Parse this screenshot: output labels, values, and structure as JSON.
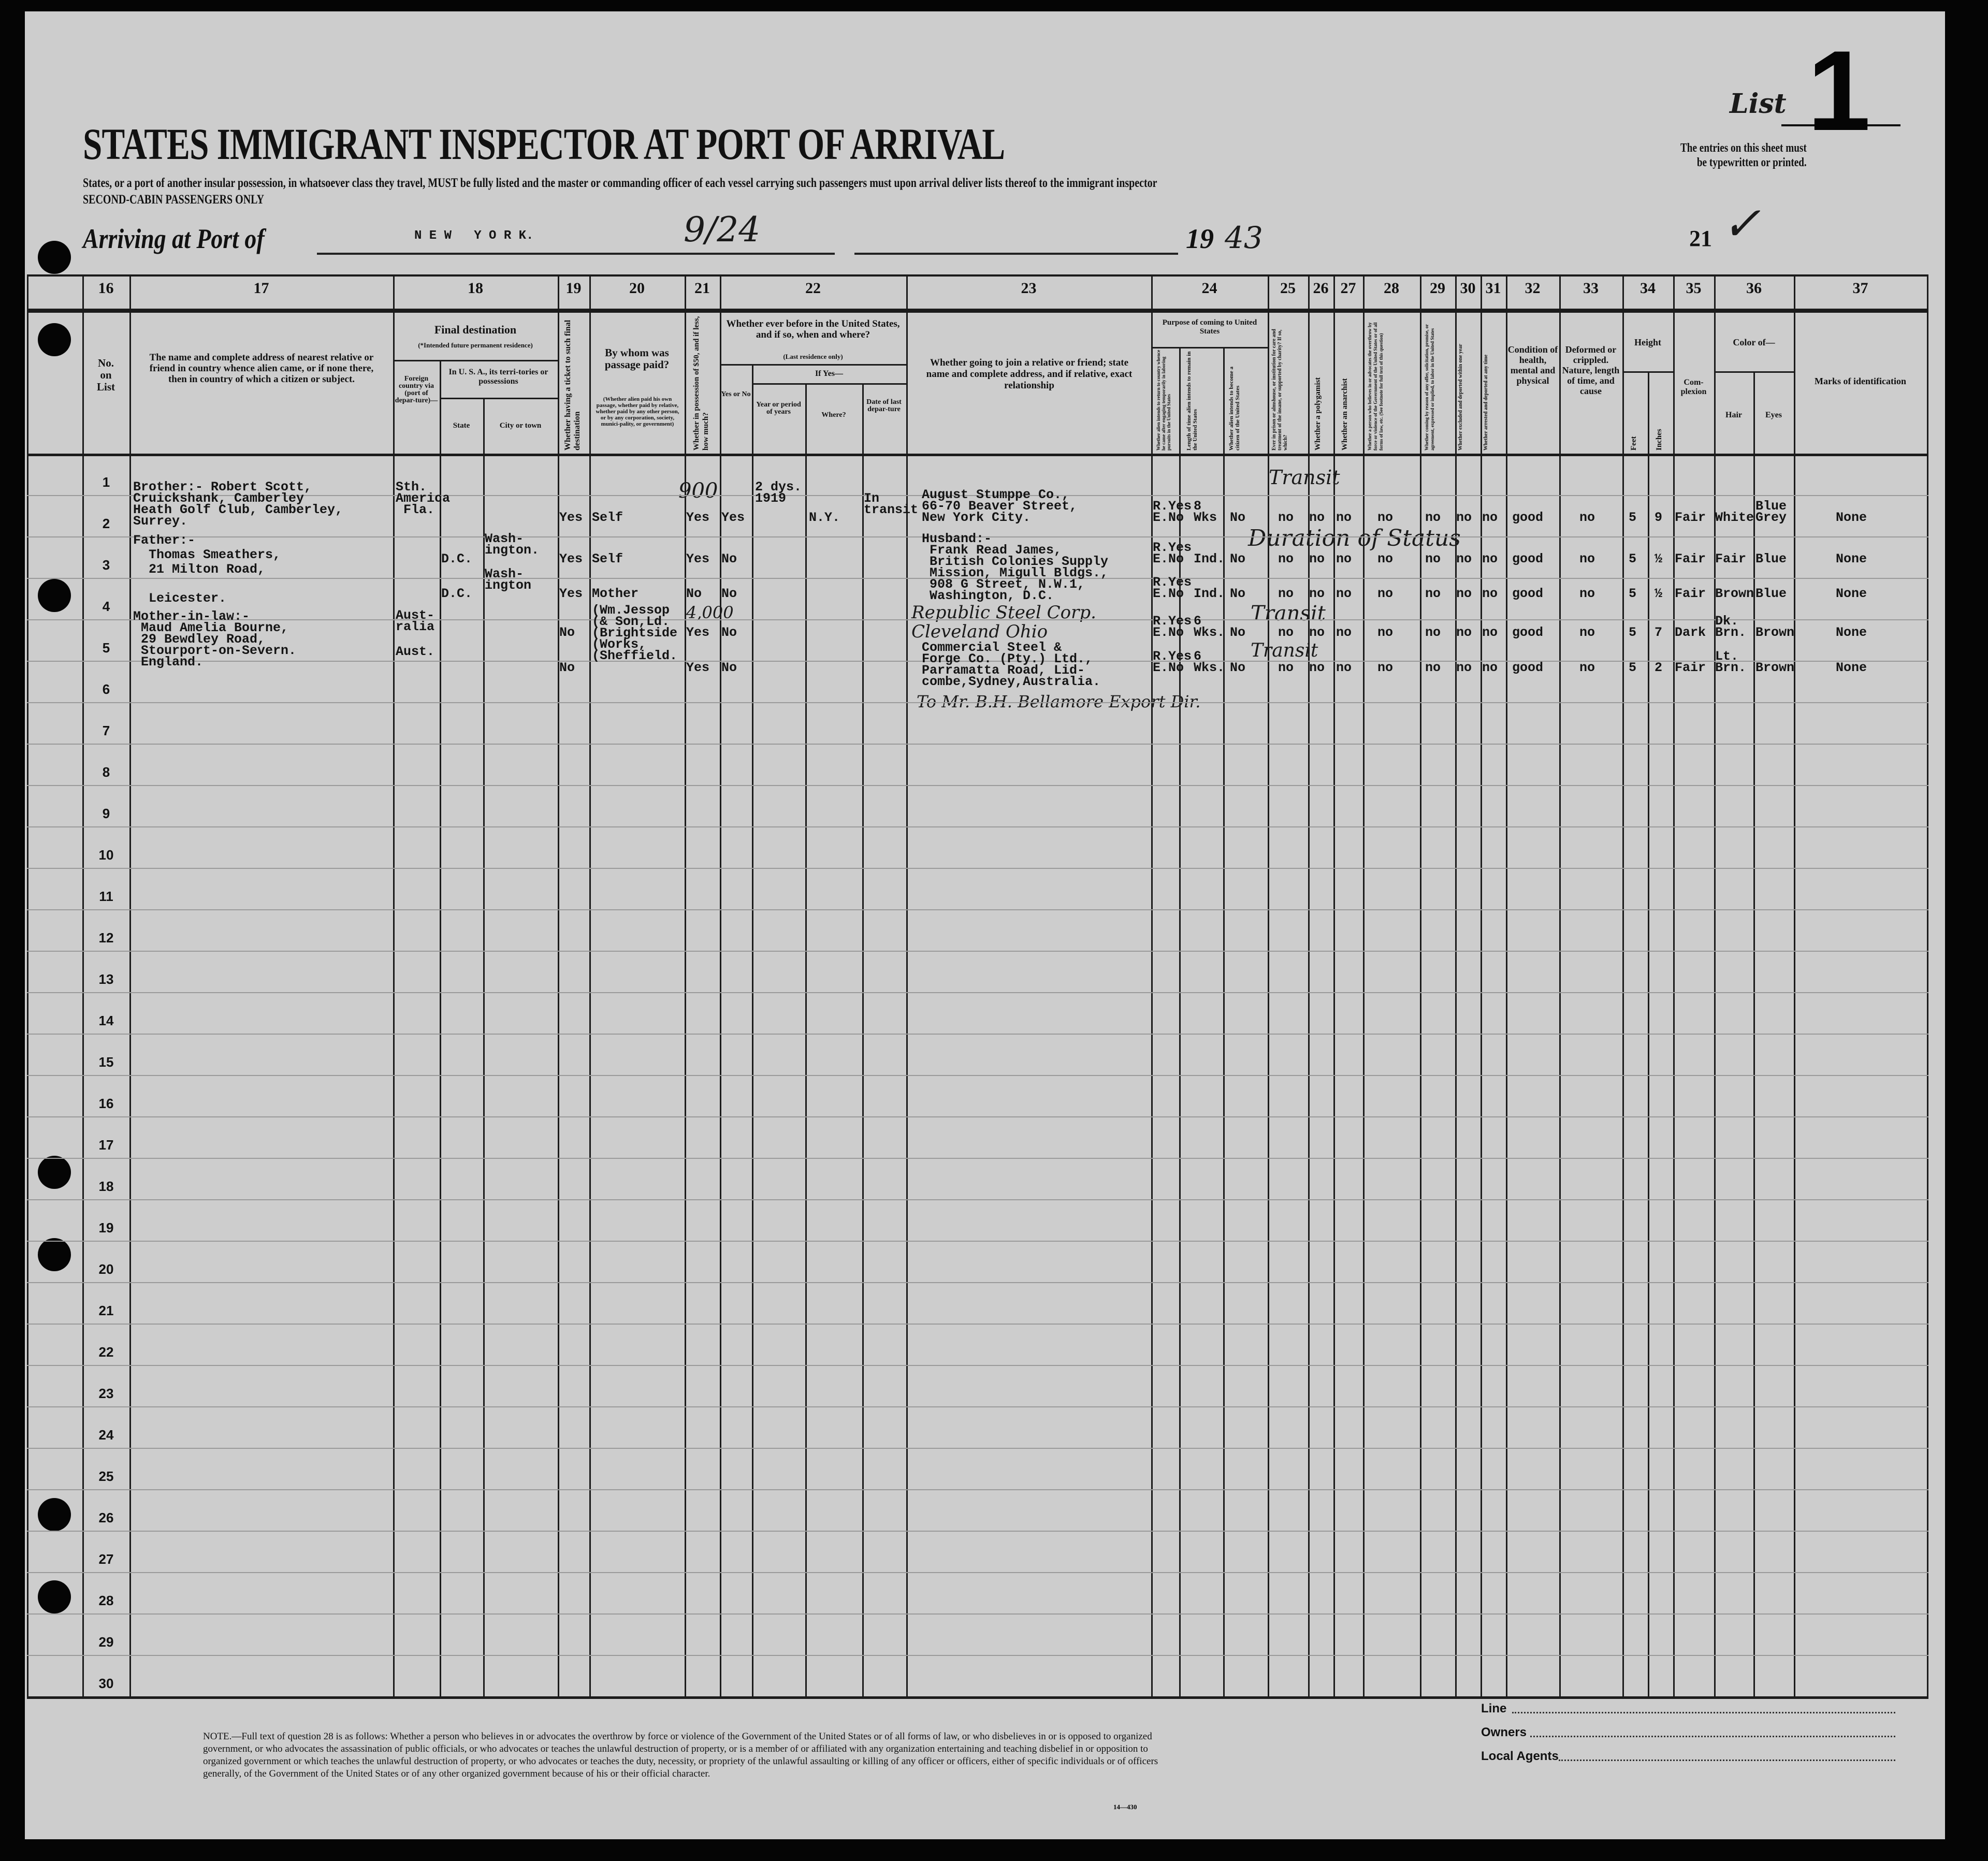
{
  "header": {
    "title": "STATES IMMIGRANT INSPECTOR AT PORT OF ARRIVAL",
    "instruction": "States, or a port of another insular possession, in whatsoever class they travel, MUST be fully listed and the master or commanding officer of each vessel carrying such passengers must upon arrival deliver lists thereof to the immigrant inspector",
    "class_line": "SECOND-CABIN PASSENGERS ONLY",
    "list_label": "List",
    "list_number": "1",
    "entries_note": "The entries on this sheet must\nbe typewritten or printed.",
    "arriving_label": "Arriving at Port of",
    "port": "N E W   Y O R K.",
    "date_handwritten": "9/24",
    "year_printed": "19",
    "year_handwritten": "43",
    "sheet_number": "21",
    "check_mark": "✓"
  },
  "column_numbers": [
    "16",
    "17",
    "18",
    "19",
    "20",
    "21",
    "22",
    "23",
    "24",
    "25",
    "26",
    "27",
    "28",
    "29",
    "30",
    "31",
    "32",
    "33",
    "34",
    "35",
    "36",
    "37"
  ],
  "column_headers": {
    "c16": "No.\non\nList",
    "c17": "The name and complete address of nearest relative or friend in country whence alien came, or if none there, then in country of which a citizen or subject.",
    "c18_title": "Final destination",
    "c18_note": "(*Intended future permanent residence)",
    "c18_foreign": "Foreign country via (port of depar-ture)—",
    "c18_usa": "In U. S. A., its terri-tories or possessions",
    "c18_state": "State",
    "c18_city": "City or town",
    "c19": "Whether having a ticket to such final destination",
    "c20": "By whom was passage paid?",
    "c20_note": "(Whether alien paid his own passage, whether paid by relative, whether paid by any other person, or by any corporation, society, munici-pality, or government)",
    "c21": "Whether in possession of $50, and if less, how much?",
    "c22": "Whether ever before in the United States, and if so, when and where?",
    "c22_note": "(Last residence only)",
    "c22_ifyes": "If Yes—",
    "c22_yesno": "Yes or No",
    "c22_year": "Year or period of years",
    "c22_where": "Where?",
    "c22_date": "Date of last depar-ture",
    "c23": "Whether going to join a relative or friend; state name and complete address, and if relative, exact relationship",
    "c24": "Purpose of coming to United States",
    "c24_a": "Whether alien intends to return to country whence he came after engaging temporarily in laboring pursuits in the United States",
    "c24_b": "Length of time alien intends to remain in the United States",
    "c24_c": "Whether alien intends to become a citizen of the United States",
    "c25": "Ever in prison or almshouse, or institution for care and treatment of the insane, or supported by charity? If so, which?",
    "c26": "Whether a polygamist",
    "c27": "Whether an anarchist",
    "c28": "Whether a person who believes in or advocates the overthrow by force or violence of the Government of the United States or of all forms of law, etc. (See footnote for full text of this question)",
    "c29": "Whether coming by reason of any offer, solicitation, promise, or agreement, expressed or implied, to labor in the United States",
    "c30": "Whether excluded and deported within one year",
    "c31": "Whether arrested and deported at any time",
    "c32": "Condition of health, mental and physical",
    "c33": "Deformed or crippled. Nature, length of time, and cause",
    "c34": "Height",
    "c34_feet": "Feet",
    "c34_inches": "Inches",
    "c35": "Com-\nplexion",
    "c36": "Color of—",
    "c36_hair": "Hair",
    "c36_eyes": "Eyes",
    "c37": "Marks of identification"
  },
  "row_numbers": [
    "1",
    "2",
    "3",
    "4",
    "5",
    "6",
    "7",
    "8",
    "9",
    "10",
    "11",
    "12",
    "13",
    "14",
    "15",
    "16",
    "17",
    "18",
    "19",
    "20",
    "21",
    "22",
    "23",
    "24",
    "25",
    "26",
    "27",
    "28",
    "29",
    "30"
  ],
  "rows": [
    {
      "relative": "Brother:- Robert Scott,\nCruickshank, Camberley\nHeath Golf Club, Camberley,\nSurrey.",
      "foreign": "Sth.\nAmerica\n Fla.",
      "state": "",
      "city": "",
      "ticket": "Yes",
      "paid_by": "Self",
      "money": "Yes",
      "before_yn": "Yes",
      "before_year": "2 dys.\n1919",
      "before_where": "N.Y.",
      "before_date": "In\ntransit",
      "joining": "August Stumppe Co.,\n66-70 Beaver Street,\nNew York City.",
      "p_ret": "R.Yes\nE.No",
      "p_len": "8\nWks",
      "p_cit": "No",
      "q25": "no",
      "q26": "no",
      "q27": "no",
      "q28": "no",
      "q29": "no",
      "q30": "no",
      "q31": "no",
      "health": "good",
      "deformed": "no",
      "feet": "5",
      "inches": "9",
      "complexion": "Fair",
      "hair": "White",
      "eyes": "Blue\nGrey",
      "marks": "None"
    },
    {
      "relative": "Father:-\n  Thomas Smeathers,\n  21 Milton Road,\n\n  Leicester.",
      "foreign": "",
      "state": "D.C.",
      "city": "Wash-\nington.",
      "ticket": "Yes",
      "paid_by": "Self",
      "money": "Yes",
      "before_yn": "No",
      "before_year": "",
      "before_where": "",
      "before_date": "",
      "joining": "Husband:-\n Frank Read James,\n British Colonies Supply\n Mission, Migull Bldgs.,\n 908 G Street, N.W.1,\n Washington, D.C.",
      "p_ret": "R.Yes\nE.No",
      "p_len": "Ind.",
      "p_cit": "No",
      "q25": "no",
      "q26": "no",
      "q27": "no",
      "q28": "no",
      "q29": "no",
      "q30": "no",
      "q31": "no",
      "health": "good",
      "deformed": "no",
      "feet": "5",
      "inches": "½",
      "complexion": "Fair",
      "hair": "Fair",
      "eyes": "Blue",
      "marks": "None"
    },
    {
      "relative": "",
      "foreign": "",
      "state": "D.C.",
      "city": "Wash-\nington",
      "ticket": "Yes",
      "paid_by": "Mother",
      "money": "No",
      "before_yn": "No",
      "before_year": "",
      "before_where": "",
      "before_date": "",
      "joining": "",
      "p_ret": "R.Yes\nE.No",
      "p_len": "Ind.",
      "p_cit": "No",
      "q25": "no",
      "q26": "no",
      "q27": "no",
      "q28": "no",
      "q29": "no",
      "q30": "no",
      "q31": "no",
      "health": "good",
      "deformed": "no",
      "feet": "5",
      "inches": "½",
      "complexion": "Fair",
      "hair": "Brown",
      "eyes": "Blue",
      "marks": "None"
    },
    {
      "relative": "Mother-in-law:-\n Maud Amelia Bourne,\n 29 Bewdley Road,\n Stourport-on-Severn.\n England.",
      "foreign": "Aust-\nralia",
      "state": "",
      "city": "",
      "ticket": "No",
      "paid_by": "(Wm.Jessop\n(& Son,Ld.\n(Brightside\n(Works,\n(Sheffield.",
      "money": "Yes",
      "before_yn": "No",
      "before_year": "",
      "before_where": "",
      "before_date": "",
      "joining": "Commercial Steel &\nForge Co. (Pty.) Ltd.,\nParramatta Road, Lid-\ncombe,Sydney,Australia.",
      "p_ret": "R.Yes\nE.No",
      "p_len": "6\nWks.",
      "p_cit": "No",
      "q25": "no",
      "q26": "no",
      "q27": "no",
      "q28": "no",
      "q29": "no",
      "q30": "no",
      "q31": "no",
      "health": "good",
      "deformed": "no",
      "feet": "5",
      "inches": "7",
      "complexion": "Dark",
      "hair": "Dk.\nBrn.",
      "eyes": "Brown",
      "marks": "None"
    },
    {
      "relative": "",
      "foreign": "Aust.",
      "state": "",
      "city": "",
      "ticket": "No",
      "paid_by": "",
      "money": "Yes",
      "before_yn": "No",
      "before_year": "",
      "before_where": "",
      "before_date": "",
      "joining": "",
      "p_ret": "R.Yes\nE.No",
      "p_len": "6\nWks.",
      "p_cit": "No",
      "q25": "no",
      "q26": "no",
      "q27": "no",
      "q28": "no",
      "q29": "no",
      "q30": "no",
      "q31": "no",
      "health": "good",
      "deformed": "no",
      "feet": "5",
      "inches": "2",
      "complexion": "Fair",
      "hair": "Lt.\nBrn.",
      "eyes": "Brown",
      "marks": "None"
    }
  ],
  "handwritten": {
    "money_row1": "900",
    "money_row4": "4,000",
    "transit_row1": "Transit",
    "duration_row2": "Duration of Status",
    "transit_row4": "Transit",
    "transit_row5": "Transit",
    "joining_row4": "Republic Steel Corp. Cleveland Ohio",
    "joining_row5": "To Mr. B.H. Bellamore  Export Dir."
  },
  "footer": {
    "note": "NOTE.—Full text of question 28 is as follows: Whether a person who believes in or advocates the overthrow by force or violence of the Government of the United States or of all forms of law, or who disbelieves in or is opposed to organized government, or who advocates the assassination of public officials, or who advocates or teaches the unlawful destruction of property, or is a member of or affiliated with any organization entertaining and teaching disbelief in or opposition to organized government or which teaches the unlawful destruction of property, or who advocates or teaches the duty, necessity, or propriety of the unlawful assaulting or killing of any officer or officers, either of specific individuals or of officers generally, of the Government of the United States or of any other organized government because of his or their official character.",
    "form_number": "14—430",
    "line_label": "Line",
    "owners_label": "Owners",
    "agents_label": "Local Agents"
  }
}
